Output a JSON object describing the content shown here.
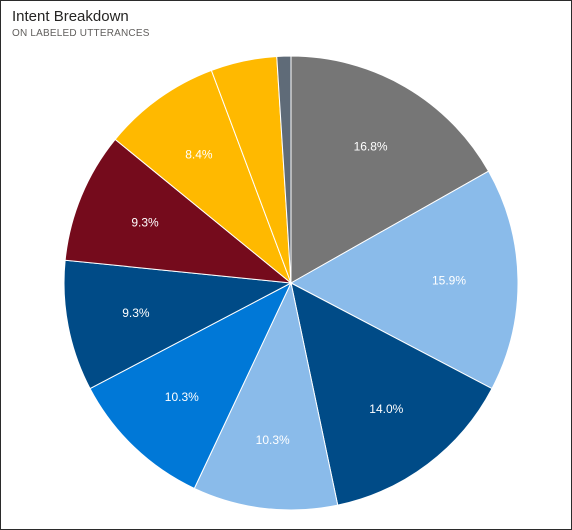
{
  "visual": {
    "title": "Intent Breakdown",
    "subtitle": "ON LABELED UTTERANCES"
  },
  "chart_data": {
    "type": "pie",
    "title": "Intent Breakdown",
    "subtitle": "ON LABELED UTTERANCES",
    "start": "top, clockwise",
    "slices": [
      {
        "value": 16.8,
        "label": "16.8%",
        "color": "#767676"
      },
      {
        "value": 15.9,
        "label": "15.9%",
        "color": "#8abbea"
      },
      {
        "value": 14.0,
        "label": "14.0%",
        "color": "#004b87"
      },
      {
        "value": 10.3,
        "label": "10.3%",
        "color": "#8abbea"
      },
      {
        "value": 10.3,
        "label": "10.3%",
        "color": "#0078d7"
      },
      {
        "value": 9.3,
        "label": "9.3%",
        "color": "#004b87"
      },
      {
        "value": 9.3,
        "label": "9.3%",
        "color": "#750b1c"
      },
      {
        "value": 8.4,
        "label": "8.4%",
        "color": "#ffb900"
      },
      {
        "value": 4.7,
        "label": "",
        "color": "#ffb900"
      },
      {
        "value": 1.0,
        "label": "",
        "color": "#5f6b78"
      }
    ]
  }
}
